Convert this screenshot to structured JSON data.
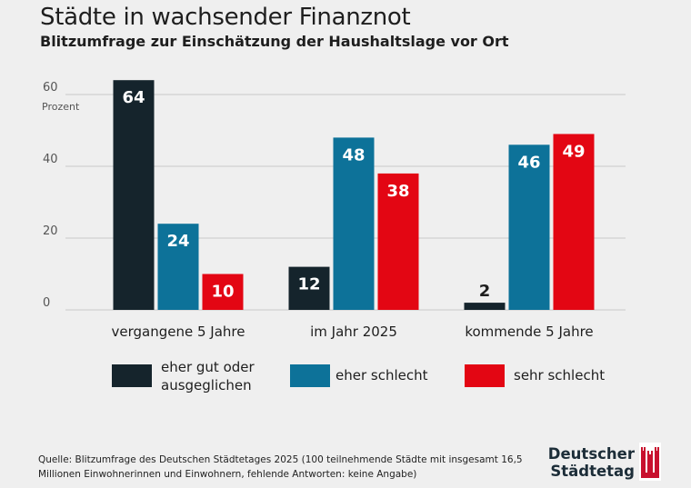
{
  "title": "Städte in wachsender Finanznot",
  "subtitle": "Blitzumfrage zur Einschätzung der Haushaltslage vor Ort",
  "source": "Quelle: Blitzumfrage des Deutschen Städtetages 2025 (100 teilnehmende Städte mit insgesamt 16,5 Millionen Einwohnerinnen und Einwohnern, fehlende Antworten: keine Angabe)",
  "logo": {
    "line1": "Deutscher",
    "line2": "Städtetag"
  },
  "colors": {
    "accent": "#e30613",
    "dark": "#15242c",
    "blue": "#0d7299",
    "grid": "#c8c8c8"
  },
  "chart_data": {
    "type": "bar",
    "title": "Städte in wachsender Finanznot",
    "subtitle": "Blitzumfrage zur Einschätzung der Haushaltslage vor Ort",
    "ylabel": "Prozent",
    "ylim": [
      0,
      60
    ],
    "yticks": [
      0,
      20,
      40,
      60
    ],
    "grid": true,
    "legend": "bottom",
    "categories": [
      "vergangene 5 Jahre",
      "im Jahr 2025",
      "kommende 5 Jahre"
    ],
    "series": [
      {
        "name": "eher gut oder ausgeglichen",
        "color": "#15242c",
        "values": [
          64,
          12,
          2
        ]
      },
      {
        "name": "eher schlecht",
        "color": "#0d7299",
        "values": [
          24,
          48,
          46
        ]
      },
      {
        "name": "sehr schlecht",
        "color": "#e30613",
        "values": [
          10,
          38,
          49
        ]
      }
    ]
  }
}
